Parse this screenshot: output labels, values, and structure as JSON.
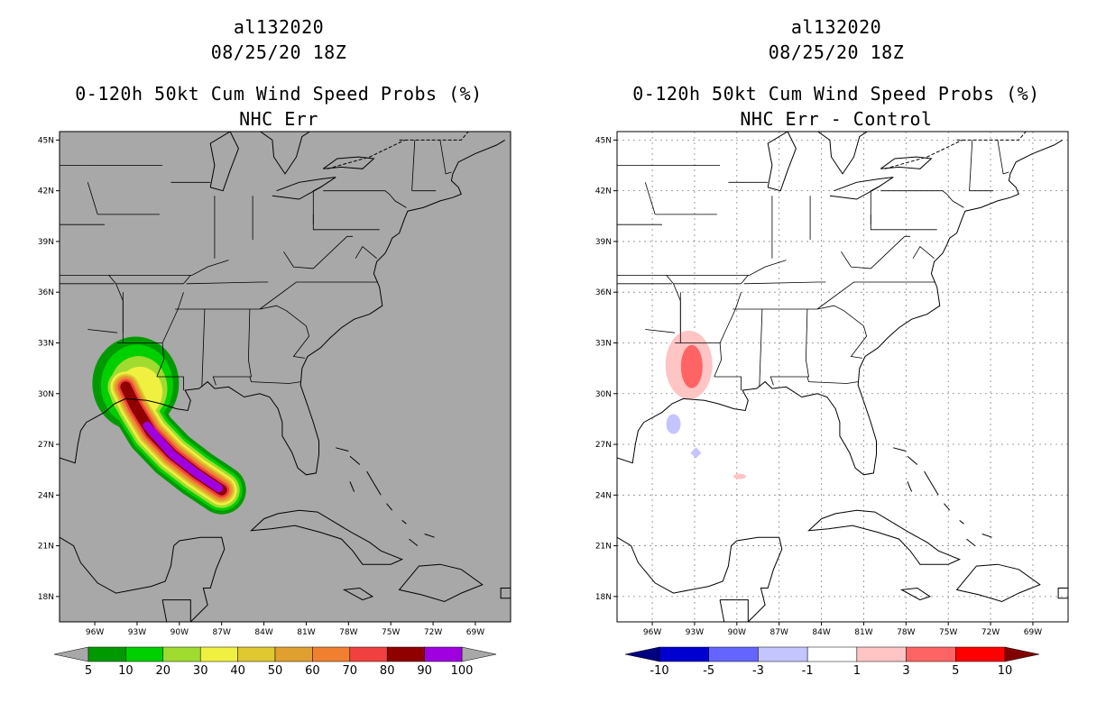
{
  "colors": {
    "land_bg_left": "#a8a8a8",
    "prob_bins": [
      "#009a00",
      "#00d000",
      "#a0dc30",
      "#f0f040",
      "#e0c830",
      "#e0a030",
      "#f08030",
      "#f04040",
      "#900000",
      "#a000e0"
    ],
    "diff_bins": [
      "#0000d0",
      "#6464ff",
      "#c4c4ff",
      "#ffffff",
      "#ffc4c4",
      "#ff6464",
      "#ff0000"
    ],
    "diff_ends": [
      "#000080",
      "#800000"
    ]
  },
  "left": {
    "storm_id": "al132020",
    "datetime": "08/25/20 18Z",
    "product": "0-120h 50kt Cum Wind Speed Probs (%)",
    "subtitle": "NHC Err",
    "colorbar_labels": [
      "5",
      "10",
      "20",
      "30",
      "40",
      "50",
      "60",
      "70",
      "80",
      "90",
      "100"
    ]
  },
  "right": {
    "storm_id": "al132020",
    "datetime": "08/25/20 18Z",
    "product": "0-120h 50kt Cum Wind Speed Probs (%)",
    "subtitle": "NHC Err - Control",
    "colorbar_labels": [
      "-10",
      "-5",
      "-3",
      "-1",
      "1",
      "3",
      "5",
      "10"
    ]
  },
  "axes": {
    "lat_labels": [
      "45N",
      "42N",
      "39N",
      "36N",
      "33N",
      "30N",
      "27N",
      "24N",
      "21N",
      "18N"
    ],
    "lat_values": [
      45,
      42,
      39,
      36,
      33,
      30,
      27,
      24,
      21,
      18
    ],
    "lon_labels": [
      "96W",
      "93W",
      "90W",
      "87W",
      "84W",
      "81W",
      "78W",
      "75W",
      "72W",
      "69W"
    ],
    "lon_values": [
      96,
      93,
      90,
      87,
      84,
      81,
      78,
      75,
      72,
      69
    ],
    "lat_range": [
      16.5,
      45.5
    ],
    "lon_range": [
      98.5,
      66.5
    ]
  }
}
